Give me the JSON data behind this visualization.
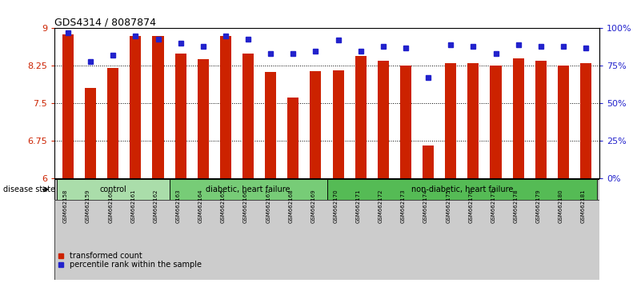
{
  "title": "GDS4314 / 8087874",
  "samples": [
    "GSM662158",
    "GSM662159",
    "GSM662160",
    "GSM662161",
    "GSM662162",
    "GSM662163",
    "GSM662164",
    "GSM662165",
    "GSM662166",
    "GSM662167",
    "GSM662168",
    "GSM662169",
    "GSM662170",
    "GSM662171",
    "GSM662172",
    "GSM662173",
    "GSM662174",
    "GSM662175",
    "GSM662176",
    "GSM662177",
    "GSM662178",
    "GSM662179",
    "GSM662180",
    "GSM662181"
  ],
  "red_values": [
    8.88,
    7.8,
    8.2,
    8.85,
    8.85,
    8.5,
    8.38,
    8.85,
    8.5,
    8.12,
    7.62,
    8.15,
    8.16,
    8.45,
    8.35,
    8.25,
    6.65,
    8.3,
    8.3,
    8.25,
    8.4,
    8.35,
    8.25,
    8.3
  ],
  "blue_values": [
    97,
    78,
    82,
    95,
    93,
    90,
    88,
    95,
    93,
    83,
    83,
    85,
    92,
    85,
    88,
    87,
    67,
    89,
    88,
    83,
    89,
    88,
    88,
    87
  ],
  "ylim_left": [
    6,
    9
  ],
  "ylim_right": [
    0,
    100
  ],
  "yticks_left": [
    6,
    6.75,
    7.5,
    8.25,
    9
  ],
  "yticks_right": [
    0,
    25,
    50,
    75,
    100
  ],
  "ytick_labels_left": [
    "6",
    "6.75",
    "7.5",
    "8.25",
    "9"
  ],
  "ytick_labels_right": [
    "0%",
    "25%",
    "50%",
    "75%",
    "100%"
  ],
  "groups": [
    {
      "label": "control",
      "start": 0,
      "end": 4,
      "color": "#aaddaa"
    },
    {
      "label": "diabetic, heart failure",
      "start": 5,
      "end": 11,
      "color": "#77cc77"
    },
    {
      "label": "non-diabetic, heart failure",
      "start": 12,
      "end": 23,
      "color": "#55bb55"
    }
  ],
  "bar_color": "#cc2200",
  "dot_color": "#2222cc",
  "bar_width": 0.5,
  "ylabel_left_color": "#cc2200",
  "ylabel_right_color": "#2222cc",
  "legend_red_label": "transformed count",
  "legend_blue_label": "percentile rank within the sample",
  "disease_state_label": "disease state",
  "grid_color": "#000000"
}
